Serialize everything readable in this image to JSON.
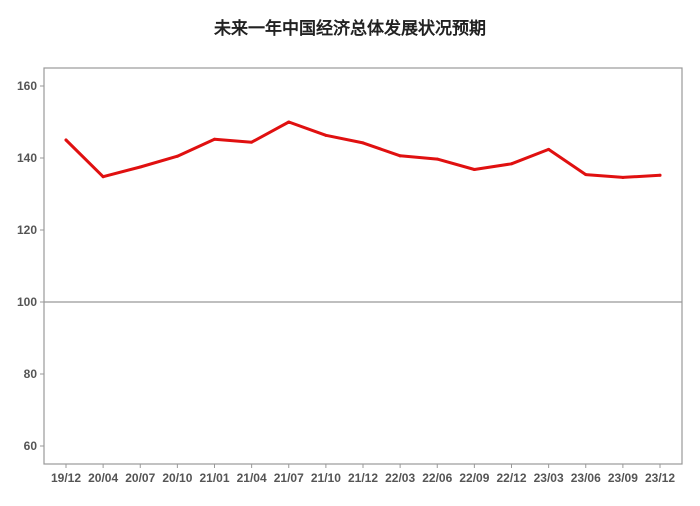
{
  "chart_data": {
    "type": "line",
    "title": "未来一年中国经济总体发展状况预期",
    "xlabel": "",
    "ylabel": "",
    "categories": [
      "19/12",
      "20/04",
      "20/07",
      "20/10",
      "21/01",
      "21/04",
      "21/07",
      "21/10",
      "21/12",
      "22/03",
      "22/06",
      "22/09",
      "22/12",
      "23/03",
      "23/06",
      "23/09",
      "23/12"
    ],
    "series": [
      {
        "values": [
          145,
          134.8,
          137.5,
          140.5,
          145.2,
          144.4,
          150,
          146.3,
          144.2,
          140.6,
          139.7,
          136.8,
          138.4,
          142.4,
          135.4,
          134.6,
          135.2
        ]
      }
    ],
    "ylim": [
      55,
      165
    ],
    "yticks": [
      "60",
      "80",
      "100",
      "120",
      "140",
      "160"
    ],
    "reference_line": 100,
    "grid": false,
    "legend": "none",
    "colors": {
      "line": "#e01010",
      "reference": "#999999",
      "frame": "#999999",
      "tick_text": "#555555"
    }
  }
}
